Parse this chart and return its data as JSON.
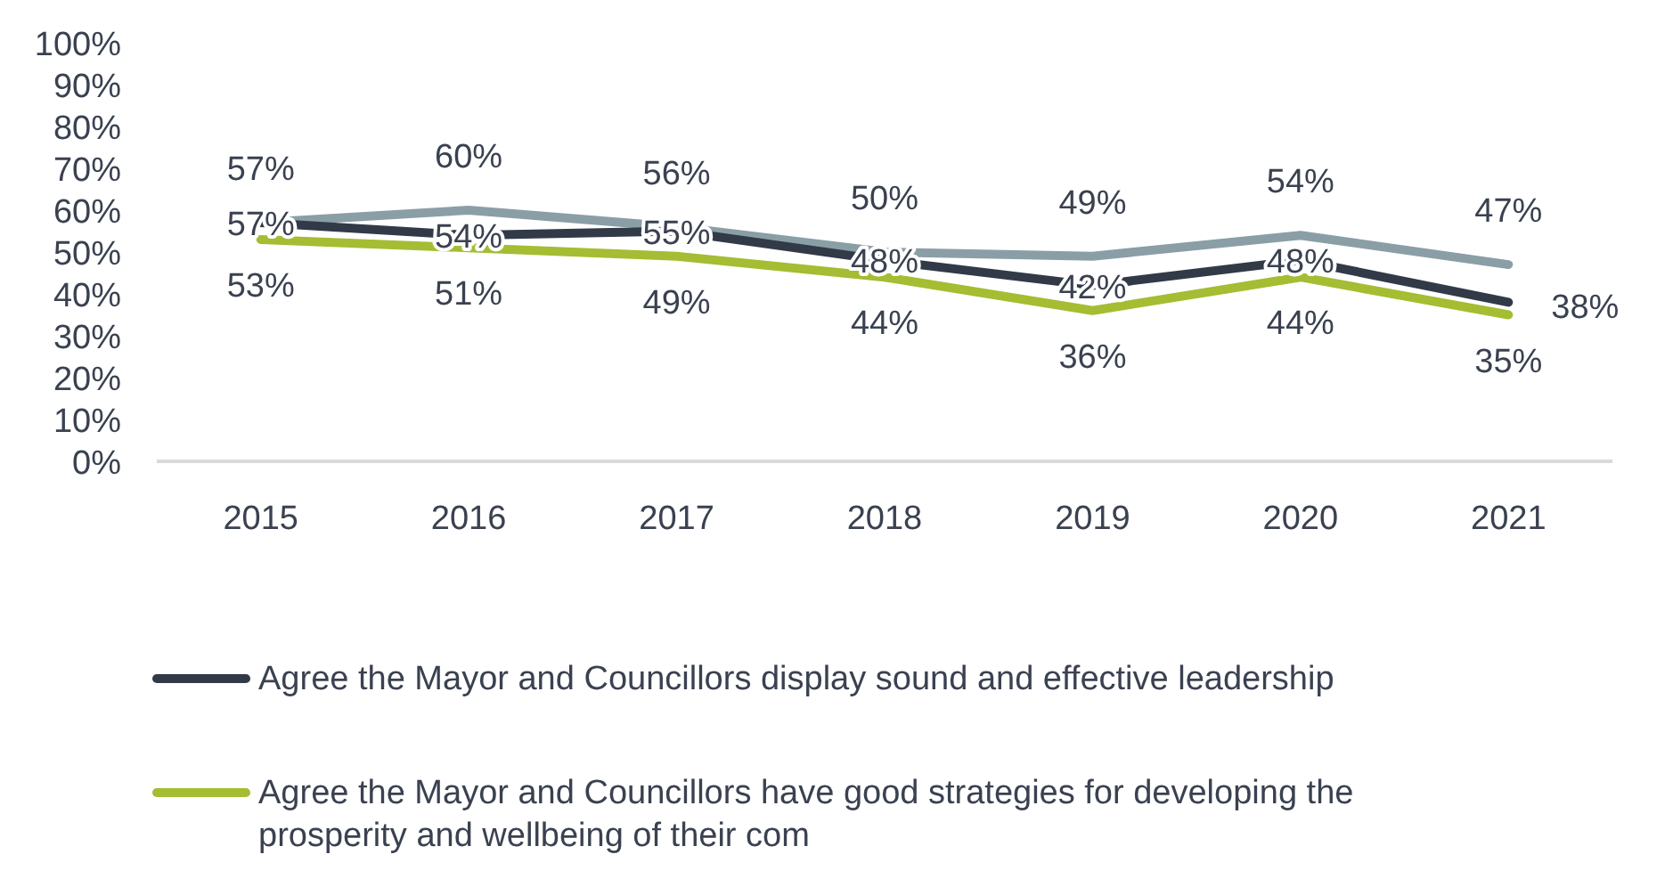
{
  "chart_data": {
    "type": "line",
    "categories": [
      "2015",
      "2016",
      "2017",
      "2018",
      "2019",
      "2020",
      "2021"
    ],
    "ylim": [
      0,
      100
    ],
    "yticks": [
      {
        "value": 0,
        "label": "0%"
      },
      {
        "value": 10,
        "label": "10%"
      },
      {
        "value": 20,
        "label": "20%"
      },
      {
        "value": 30,
        "label": "30%"
      },
      {
        "value": 40,
        "label": "40%"
      },
      {
        "value": 50,
        "label": "50%"
      },
      {
        "value": 60,
        "label": "60%"
      },
      {
        "value": 70,
        "label": "70%"
      },
      {
        "value": 80,
        "label": "80%"
      },
      {
        "value": 90,
        "label": "90%"
      },
      {
        "value": 100,
        "label": "100%"
      }
    ],
    "series": [
      {
        "color": "#8a9ea6",
        "values": [
          57,
          60,
          56,
          50,
          49,
          54,
          47
        ],
        "value_labels": [
          "57%",
          "60%",
          "56%",
          "50%",
          "49%",
          "54%",
          "47%"
        ]
      },
      {
        "name": "Agree the Mayor and Councillors display sound and effective leadership",
        "color": "#323a48",
        "values": [
          57,
          54,
          55,
          48,
          42,
          48,
          38
        ],
        "value_labels": [
          "57%",
          "54%",
          "55%",
          "48%",
          "42%",
          "48%",
          "38%"
        ]
      },
      {
        "name": "Agree the Mayor and Councillors have good strategies for developing the prosperity and wellbeing of their com",
        "color": "#a4bd32",
        "values": [
          53,
          51,
          49,
          44,
          36,
          44,
          35
        ],
        "value_labels": [
          "53%",
          "51%",
          "49%",
          "44%",
          "36%",
          "44%",
          "35%"
        ]
      }
    ],
    "grid": false,
    "legend": "bottom",
    "marker": "none",
    "line_style": "solid"
  }
}
